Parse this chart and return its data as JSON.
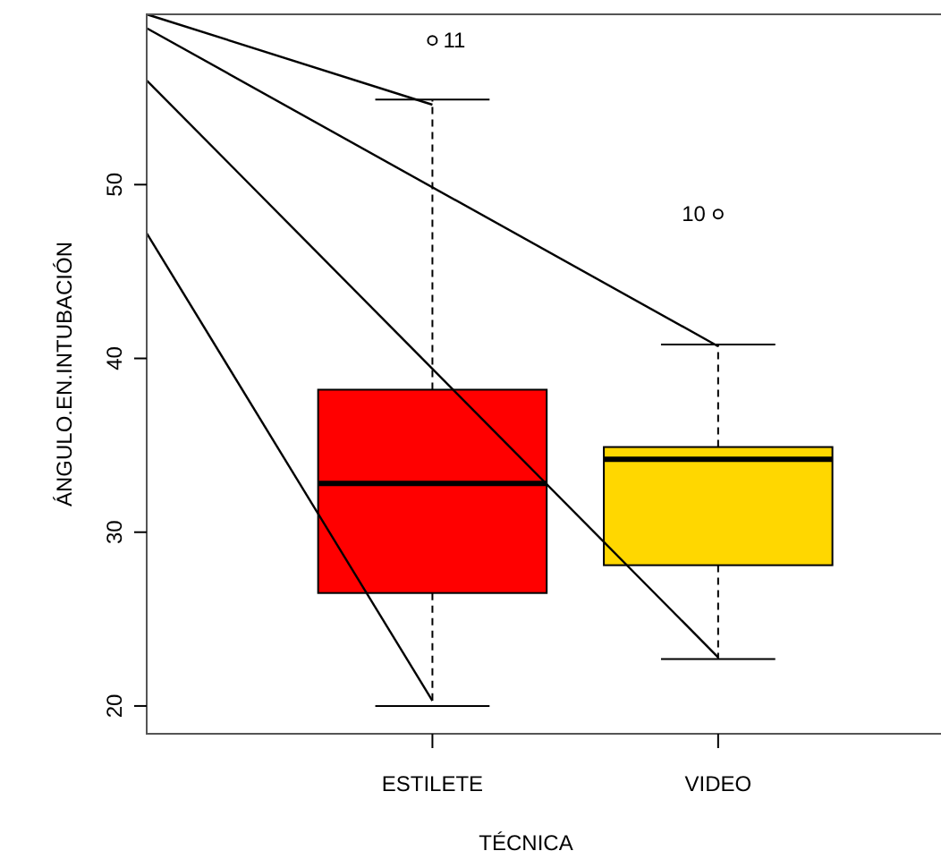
{
  "chart_data": {
    "type": "box",
    "xlabel": "TÉCNICA",
    "ylabel": "ÁNGULO.EN.INTUBACIÓN",
    "categories": [
      null,
      "ESTILETE",
      "VIDEO"
    ],
    "colors": [
      null,
      "#ff0000",
      "#ffd700"
    ],
    "boxes": [
      null,
      {
        "low": 20,
        "q1": 26.5,
        "median": 32.8,
        "q3": 38.2,
        "high": 54.9,
        "outliers": [
          58.3
        ]
      },
      {
        "low": 22.7,
        "q1": 28.1,
        "median": 34.2,
        "q3": 34.9,
        "high": 40.8,
        "outliers": [
          48.3
        ]
      }
    ],
    "series": [
      {
        "type": "line",
        "color": "#000000",
        "values": [
          59.8,
          54.6,
          null
        ]
      },
      {
        "type": "line",
        "color": "#000000",
        "values": [
          59.0,
          null,
          40.7
        ]
      },
      {
        "type": "line",
        "color": "#000000",
        "values": [
          56.0,
          null,
          22.8
        ]
      },
      {
        "type": "line",
        "color": "#000000",
        "values": [
          47.2,
          20.3,
          null
        ]
      }
    ],
    "ylim": [
      18.4,
      59.8
    ],
    "yticks": [
      20,
      30,
      40,
      50
    ],
    "grid": false,
    "marker": "none",
    "annotations": [
      "11",
      "10"
    ]
  }
}
